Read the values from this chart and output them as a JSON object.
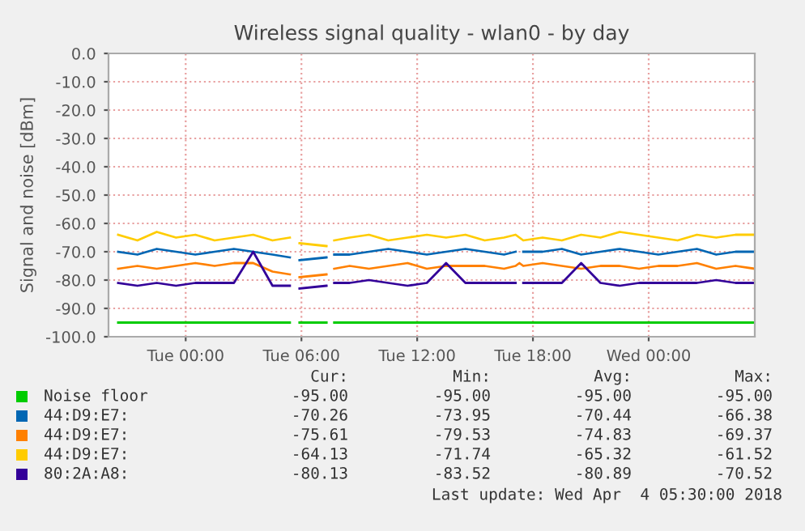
{
  "chart_data": {
    "type": "line",
    "title": "Wireless signal quality - wlan0 - by day",
    "ylabel": "Signal and noise [dBm]",
    "x": [
      "2018-04-02T20:30",
      "2018-04-02T21:30",
      "2018-04-02T22:30",
      "2018-04-02T23:30",
      "2018-04-03T00:30",
      "2018-04-03T01:30",
      "2018-04-03T02:30",
      "2018-04-03T03:30",
      "2018-04-03T04:30",
      "2018-04-03T05:24",
      "2018-04-03T05:36",
      "2018-04-03T05:54",
      "2018-04-03T07:18",
      "2018-04-03T07:30",
      "2018-04-03T07:42",
      "2018-04-03T08:30",
      "2018-04-03T09:30",
      "2018-04-03T10:30",
      "2018-04-03T11:30",
      "2018-04-03T12:30",
      "2018-04-03T13:30",
      "2018-04-03T14:30",
      "2018-04-03T15:30",
      "2018-04-03T16:30",
      "2018-04-03T17:06",
      "2018-04-03T17:18",
      "2018-04-03T17:30",
      "2018-04-03T18:30",
      "2018-04-03T19:30",
      "2018-04-03T20:30",
      "2018-04-03T21:30",
      "2018-04-03T22:30",
      "2018-04-03T23:30",
      "2018-04-04T00:30",
      "2018-04-04T01:30",
      "2018-04-04T02:30",
      "2018-04-04T03:30",
      "2018-04-04T04:30",
      "2018-04-04T05:30"
    ],
    "series": [
      {
        "name": "Noise floor",
        "color": "#00cc00",
        "values": [
          -95,
          -95,
          -95,
          -95,
          -95,
          -95,
          -95,
          -95,
          -95,
          -95,
          null,
          -95,
          -95,
          null,
          -95,
          -95,
          -95,
          -95,
          -95,
          -95,
          -95,
          -95,
          -95,
          -95,
          -95,
          -95,
          -95,
          -95,
          -95,
          -95,
          -95,
          -95,
          -95,
          -95,
          -95,
          -95,
          -95,
          -95,
          -95
        ]
      },
      {
        "name": "44:D9:E7:",
        "color": "#0066b3",
        "values": [
          -70,
          -71,
          -69,
          -70,
          -71,
          -70,
          -69,
          -70,
          -71,
          -72,
          null,
          -73,
          -72,
          null,
          -71,
          -71,
          -70,
          -69,
          -70,
          -71,
          -70,
          -69,
          -70,
          -71,
          -70,
          null,
          -70,
          -70,
          -69,
          -71,
          -70,
          -69,
          -70,
          -71,
          -70,
          -69,
          -71,
          -70,
          -70
        ]
      },
      {
        "name": "44:D9:E7:",
        "color": "#ff8000",
        "values": [
          -76,
          -75,
          -76,
          -75,
          -74,
          -75,
          -74,
          -74,
          -77,
          -78,
          null,
          -79,
          -78,
          null,
          -76,
          -75,
          -76,
          -75,
          -74,
          -76,
          -75,
          -75,
          -75,
          -76,
          -75,
          -74,
          -75,
          -74,
          -75,
          -76,
          -75,
          -75,
          -76,
          -75,
          -75,
          -74,
          -76,
          -75,
          -76
        ]
      },
      {
        "name": "44:D9:E7:",
        "color": "#ffcc00",
        "values": [
          -64,
          -66,
          -63,
          -65,
          -64,
          -66,
          -65,
          -64,
          -66,
          -65,
          null,
          -67,
          -68,
          null,
          -66,
          -65,
          -64,
          -66,
          -65,
          -64,
          -65,
          -64,
          -66,
          -65,
          -64,
          -65,
          -66,
          -65,
          -66,
          -64,
          -65,
          -63,
          -64,
          -65,
          -66,
          -64,
          -65,
          -64,
          -64
        ]
      },
      {
        "name": "80:2A:A8:",
        "color": "#330099",
        "values": [
          -81,
          -82,
          -81,
          -82,
          -81,
          -81,
          -81,
          -70,
          -82,
          -82,
          null,
          -83,
          -82,
          null,
          -81,
          -81,
          -80,
          -81,
          -82,
          -81,
          -74,
          -81,
          -81,
          -81,
          -81,
          null,
          -81,
          -81,
          -81,
          -74,
          -81,
          -82,
          -81,
          -81,
          -81,
          -81,
          -80,
          -81,
          -81
        ]
      }
    ],
    "xlim": [
      "2018-04-02T20:00",
      "2018-04-04T05:30"
    ],
    "xticks": [
      {
        "value": "2018-04-03T00:00",
        "label": "Tue 00:00"
      },
      {
        "value": "2018-04-03T06:00",
        "label": "Tue 06:00"
      },
      {
        "value": "2018-04-03T12:00",
        "label": "Tue 12:00"
      },
      {
        "value": "2018-04-03T18:00",
        "label": "Tue 18:00"
      },
      {
        "value": "2018-04-04T00:00",
        "label": "Wed 00:00"
      }
    ],
    "ylim": [
      -100,
      0
    ],
    "yticks": [
      {
        "value": -100,
        "label": "-100.0"
      },
      {
        "value": -90,
        "label": "-90.0"
      },
      {
        "value": -80,
        "label": "-80.0"
      },
      {
        "value": -70,
        "label": "-70.0"
      },
      {
        "value": -60,
        "label": "-60.0"
      },
      {
        "value": -50,
        "label": "-50.0"
      },
      {
        "value": -40,
        "label": "-40.0"
      },
      {
        "value": -30,
        "label": "-30.0"
      },
      {
        "value": -20,
        "label": "-20.0"
      },
      {
        "value": -10,
        "label": "-10.0"
      },
      {
        "value": 0,
        "label": "0.0"
      }
    ],
    "grid": true,
    "legend": "bottom",
    "marker": "none",
    "line_style": "solid",
    "annotations": [
      "Cur:",
      "Min:",
      "Avg:",
      "Max:",
      "-95.00",
      "-95.00",
      "-95.00",
      "-95.00",
      "-70.26",
      "-73.95",
      "-70.44",
      "-66.38",
      "-75.61",
      "-79.53",
      "-74.83",
      "-69.37",
      "-64.13",
      "-71.74",
      "-65.32",
      "-61.52",
      "-80.13",
      "-83.52",
      "-80.89",
      "-70.52",
      "Last update: Wed Apr  4 05:30:00 2018"
    ]
  }
}
